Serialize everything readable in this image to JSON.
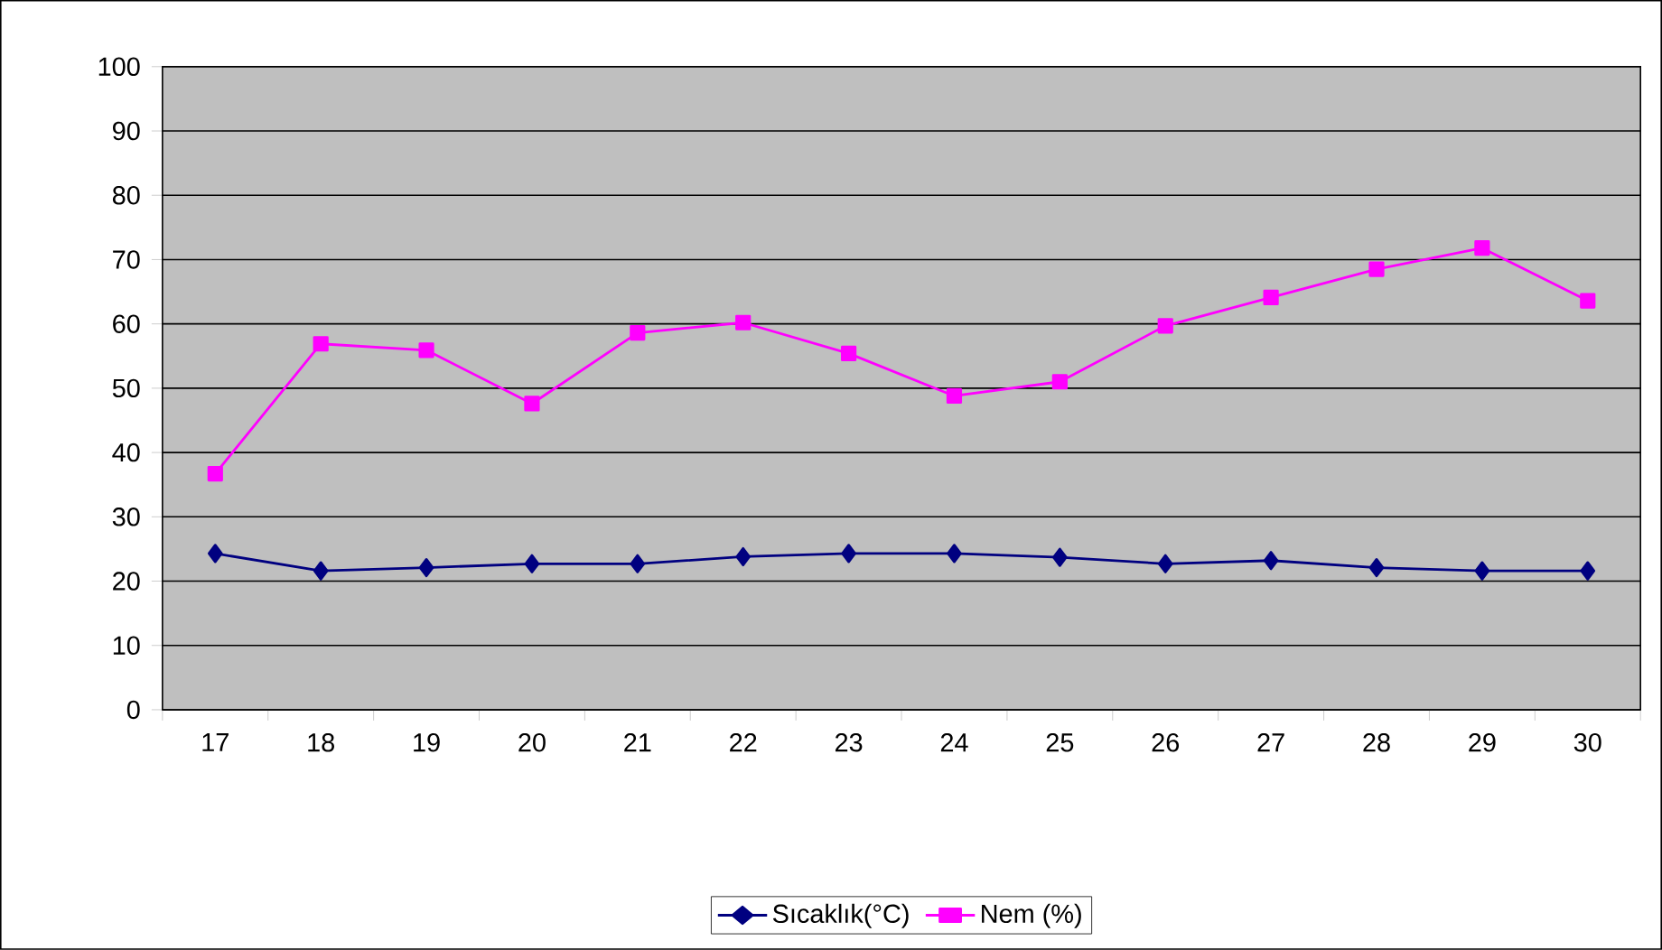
{
  "chart_data": {
    "type": "line",
    "categories": [
      "17",
      "18",
      "19",
      "20",
      "21",
      "22",
      "23",
      "24",
      "25",
      "26",
      "27",
      "28",
      "29",
      "30"
    ],
    "series": [
      {
        "name": "Sıcaklık(°C)",
        "color": "#000080",
        "marker": "diamond",
        "values": [
          24.3,
          21.6,
          22.1,
          22.7,
          22.7,
          23.8,
          24.3,
          24.3,
          23.7,
          22.7,
          23.2,
          22.1,
          21.6,
          21.6
        ]
      },
      {
        "name": "Nem (%)",
        "color": "#ff00ff",
        "marker": "square",
        "values": [
          36.7,
          56.9,
          55.9,
          47.6,
          58.6,
          60.2,
          55.4,
          48.8,
          51.0,
          59.7,
          64.1,
          68.5,
          71.8,
          63.6
        ]
      }
    ],
    "ylim": [
      0,
      100
    ],
    "yticks": [
      0,
      10,
      20,
      30,
      40,
      50,
      60,
      70,
      80,
      90,
      100
    ],
    "grid": "y",
    "legend": "bottom",
    "line_style": "solid"
  }
}
